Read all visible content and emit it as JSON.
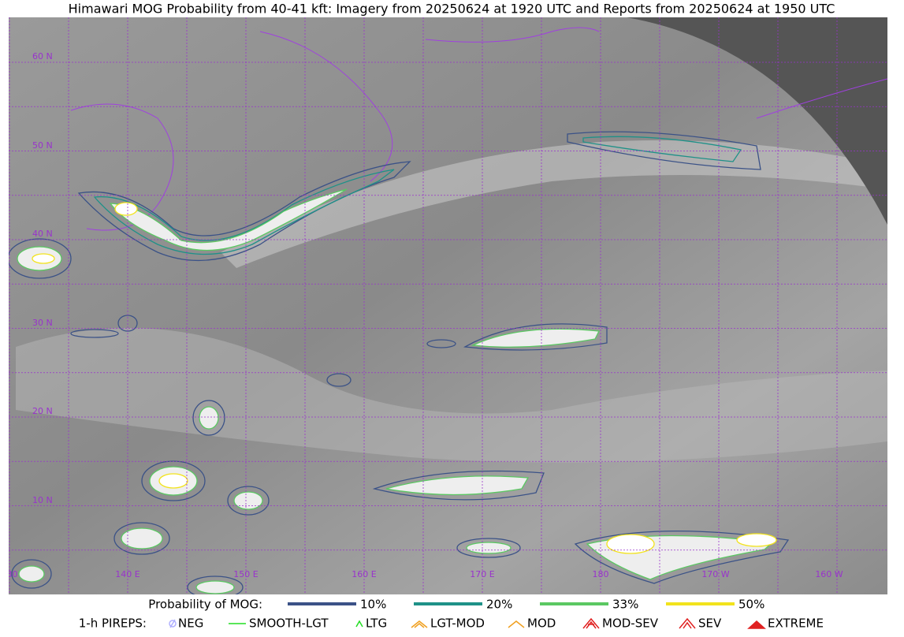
{
  "title": "Himawari MOG Probability from 40-41 kft: Imagery from 20250624 at 1920 UTC and Reports from 20250624 at 1950 UTC",
  "map": {
    "lat_labels": [
      "60 N",
      "50 N",
      "40 N",
      "30 N",
      "20 N",
      "10 N"
    ],
    "lon_labels": [
      "130",
      "140 E",
      "150 E",
      "160 E",
      "170 E",
      "180",
      "170 W",
      "160 W"
    ]
  },
  "legend": {
    "probability": {
      "label": "Probability of MOG:",
      "items": [
        {
          "name": "10%",
          "color": "#3b5287"
        },
        {
          "name": "20%",
          "color": "#1f9188"
        },
        {
          "name": "33%",
          "color": "#5bc862"
        },
        {
          "name": "50%",
          "color": "#f2e31c"
        }
      ]
    },
    "pireps": {
      "label": "1-h PIREPS:",
      "items": [
        {
          "name": "NEG",
          "color": "#b0b0ff"
        },
        {
          "name": "SMOOTH-LGT",
          "color": "#22dd22"
        },
        {
          "name": "LTG",
          "color": "#22dd22"
        },
        {
          "name": "LGT-MOD",
          "color": "#f0a020"
        },
        {
          "name": "MOD",
          "color": "#f0a020"
        },
        {
          "name": "MOD-SEV",
          "color": "#e02020"
        },
        {
          "name": "SEV",
          "color": "#e02020"
        },
        {
          "name": "EXTREME",
          "color": "#e02020"
        }
      ]
    }
  }
}
